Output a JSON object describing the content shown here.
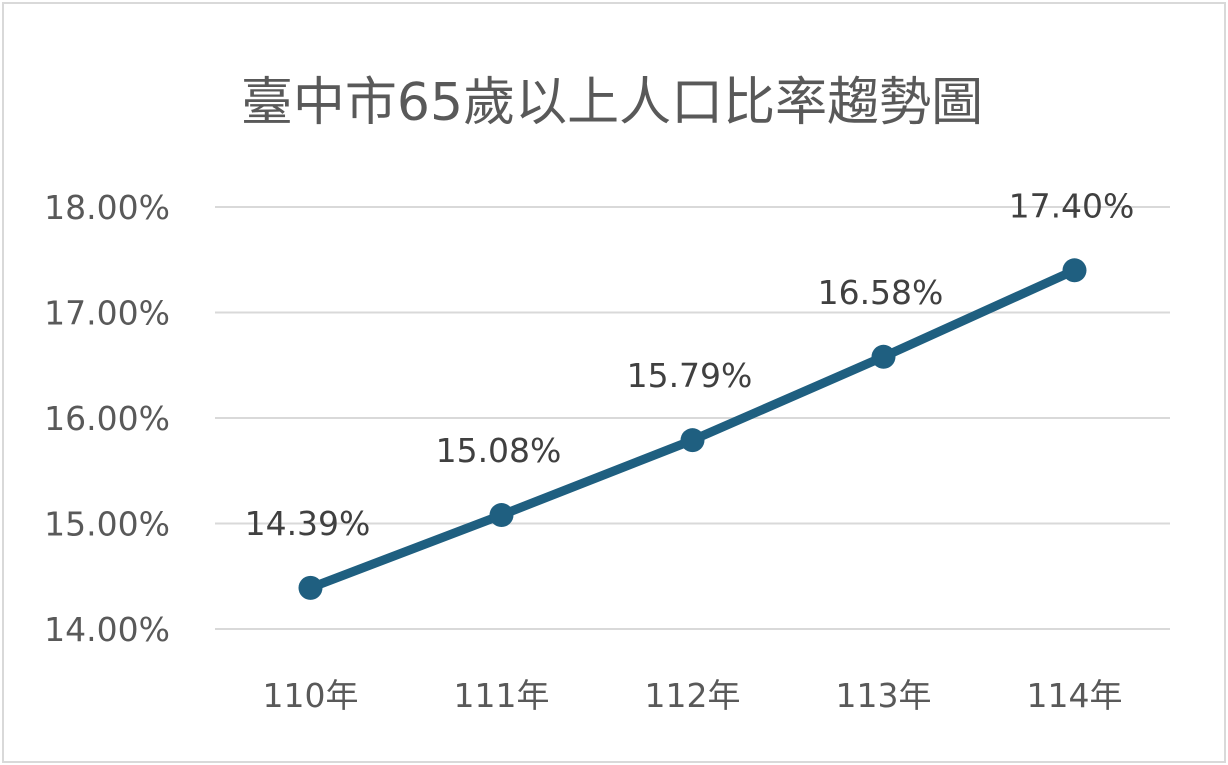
{
  "chart_data": {
    "type": "line",
    "title": "臺中市65歲以上人口比率趨勢圖",
    "categories": [
      "110年",
      "111年",
      "112年",
      "113年",
      "114年"
    ],
    "series": [
      {
        "values": [
          14.39,
          15.08,
          15.79,
          16.58,
          17.4
        ],
        "labels": [
          "14.39%",
          "15.08%",
          "15.79%",
          "16.58%",
          "17.40%"
        ],
        "color": "#1f5f80"
      }
    ],
    "yticks": [
      {
        "value": 14,
        "label": "14.00%"
      },
      {
        "value": 15,
        "label": "15.00%"
      },
      {
        "value": 16,
        "label": "16.00%"
      },
      {
        "value": 17,
        "label": "17.00%"
      },
      {
        "value": 18,
        "label": "18.00%"
      }
    ],
    "ylim": [
      14,
      18
    ],
    "grid": true,
    "legend": "none",
    "colors": {
      "border": "#d9d9d9",
      "grid": "#d9d9d9",
      "text": "#595959"
    }
  }
}
